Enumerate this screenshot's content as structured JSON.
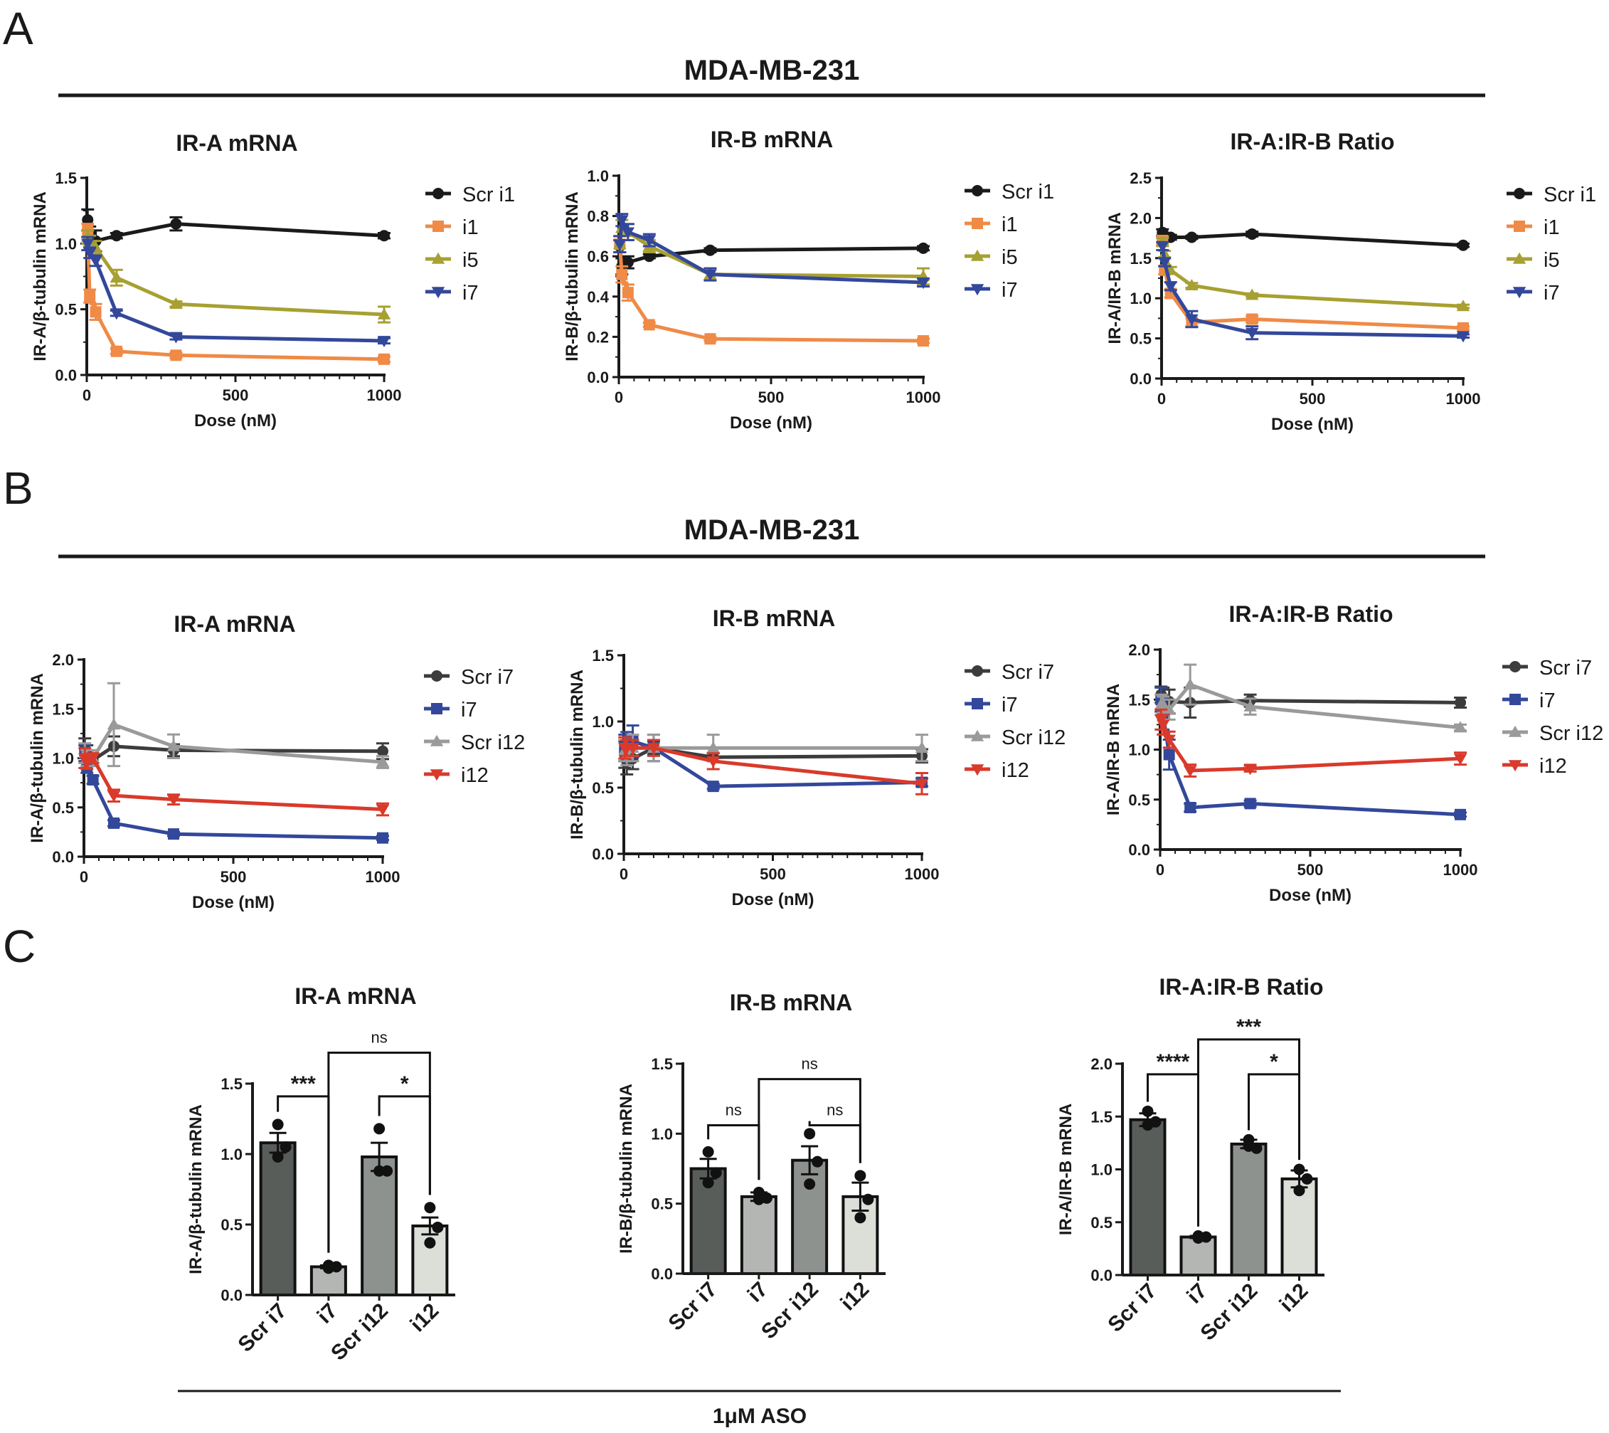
{
  "figure": {
    "panels": [
      "A",
      "B",
      "C"
    ],
    "cell_line": "MDA-MB-231",
    "aso_label": "1μM ASO"
  },
  "colors": {
    "black": "#1a1a1a",
    "orange": "#ef8a47",
    "olive": "#a7a032",
    "blue": "#33489a",
    "gray": "#9a9a9a",
    "darkgray": "#3c3c3c",
    "red": "#d93a2b",
    "bar_dark": "#585d5a",
    "bar_mid": "#b4b6b4",
    "bar_midgray": "#8e928f",
    "bar_light": "#dcdfd8"
  },
  "chart_data": [
    {
      "id": "A1",
      "type": "line",
      "title": "IR-A mRNA",
      "xlabel": "Dose (nM)",
      "ylabel": "IR-A/β-tubulin mRNA",
      "xlim": [
        0,
        1000
      ],
      "ylim": [
        0,
        1.5
      ],
      "xticks": [
        0,
        500,
        1000
      ],
      "yticks": [
        0.0,
        0.5,
        1.0,
        1.5
      ],
      "x": [
        3,
        10,
        30,
        100,
        300,
        1000
      ],
      "series": [
        {
          "name": "Scr i1",
          "color": "black",
          "marker": "circle",
          "values": [
            1.18,
            1.08,
            1.02,
            1.06,
            1.15,
            1.06
          ],
          "errors": [
            0.08,
            0.05,
            0.08,
            0.02,
            0.05,
            0.02
          ]
        },
        {
          "name": "i1",
          "color": "orange",
          "marker": "square",
          "values": [
            1.1,
            0.6,
            0.48,
            0.18,
            0.15,
            0.12
          ],
          "errors": [
            0.05,
            0.05,
            0.06,
            0.02,
            0.02,
            0.02
          ]
        },
        {
          "name": "i5",
          "color": "olive",
          "marker": "triangle-up",
          "values": [
            1.05,
            1.02,
            0.97,
            0.74,
            0.54,
            0.46
          ],
          "errors": [
            0.05,
            0.04,
            0.05,
            0.06,
            0.02,
            0.06
          ]
        },
        {
          "name": "i7",
          "color": "blue",
          "marker": "triangle-down",
          "values": [
            1.0,
            0.93,
            0.87,
            0.47,
            0.29,
            0.26
          ],
          "errors": [
            0.05,
            0.04,
            0.04,
            0.02,
            0.02,
            0.02
          ]
        }
      ]
    },
    {
      "id": "A2",
      "type": "line",
      "title": "IR-B mRNA",
      "xlabel": "Dose (nM)",
      "ylabel": "IR-B/β-tubulin mRNA",
      "xlim": [
        0,
        1000
      ],
      "ylim": [
        0,
        1.0
      ],
      "xticks": [
        0,
        500,
        1000
      ],
      "yticks": [
        0.0,
        0.2,
        0.4,
        0.6,
        0.8,
        1.0
      ],
      "x": [
        3,
        10,
        30,
        100,
        300,
        1000
      ],
      "series": [
        {
          "name": "Scr i1",
          "color": "black",
          "marker": "circle",
          "values": [
            0.65,
            0.55,
            0.57,
            0.6,
            0.63,
            0.64
          ],
          "errors": [
            0.03,
            0.04,
            0.03,
            0.01,
            0.01,
            0.01
          ]
        },
        {
          "name": "i1",
          "color": "orange",
          "marker": "square",
          "values": [
            0.66,
            0.51,
            0.42,
            0.26,
            0.19,
            0.18
          ],
          "errors": [
            0.04,
            0.04,
            0.04,
            0.01,
            0.01,
            0.01
          ]
        },
        {
          "name": "i5",
          "color": "olive",
          "marker": "triangle-up",
          "values": [
            0.66,
            0.74,
            0.72,
            0.65,
            0.51,
            0.5
          ],
          "errors": [
            0.04,
            0.04,
            0.04,
            0.03,
            0.03,
            0.04
          ]
        },
        {
          "name": "i7",
          "color": "blue",
          "marker": "triangle-down",
          "values": [
            0.66,
            0.78,
            0.72,
            0.68,
            0.51,
            0.47
          ],
          "errors": [
            0.04,
            0.03,
            0.04,
            0.03,
            0.03,
            0.02
          ]
        }
      ]
    },
    {
      "id": "A3",
      "type": "line",
      "title": "IR-A:IR-B Ratio",
      "xlabel": "Dose (nM)",
      "ylabel": "IR-A/IR-B mRNA",
      "xlim": [
        0,
        1000
      ],
      "ylim": [
        0,
        2.5
      ],
      "xticks": [
        0,
        500,
        1000
      ],
      "yticks": [
        0.0,
        0.5,
        1.0,
        1.5,
        2.0,
        2.5
      ],
      "x": [
        3,
        10,
        30,
        100,
        300,
        1000
      ],
      "series": [
        {
          "name": "Scr i1",
          "color": "black",
          "marker": "circle",
          "values": [
            1.82,
            1.78,
            1.76,
            1.76,
            1.8,
            1.66
          ],
          "errors": [
            0.04,
            0.03,
            0.03,
            0.02,
            0.03,
            0.02
          ]
        },
        {
          "name": "i1",
          "color": "orange",
          "marker": "square",
          "values": [
            1.72,
            1.35,
            1.06,
            0.7,
            0.74,
            0.63
          ],
          "errors": [
            0.05,
            0.05,
            0.05,
            0.05,
            0.04,
            0.02
          ]
        },
        {
          "name": "i5",
          "color": "olive",
          "marker": "triangle-up",
          "values": [
            1.7,
            1.55,
            1.35,
            1.16,
            1.04,
            0.9
          ],
          "errors": [
            0.05,
            0.04,
            0.04,
            0.03,
            0.02,
            0.02
          ]
        },
        {
          "name": "i7",
          "color": "blue",
          "marker": "triangle-down",
          "values": [
            1.65,
            1.45,
            1.15,
            0.74,
            0.57,
            0.53
          ],
          "errors": [
            0.05,
            0.05,
            0.05,
            0.1,
            0.08,
            0.02
          ]
        }
      ]
    },
    {
      "id": "B1",
      "type": "line",
      "title": "IR-A mRNA",
      "xlabel": "Dose (nM)",
      "ylabel": "IR-A/β-tubulin mRNA",
      "xlim": [
        0,
        1000
      ],
      "ylim": [
        0,
        2.0
      ],
      "xticks": [
        0,
        500,
        1000
      ],
      "yticks": [
        0.0,
        0.5,
        1.0,
        1.5,
        2.0
      ],
      "x": [
        3,
        10,
        30,
        100,
        300,
        1000
      ],
      "series": [
        {
          "name": "Scr i7",
          "color": "darkgray",
          "marker": "circle",
          "values": [
            1.1,
            1.05,
            0.98,
            1.12,
            1.08,
            1.07
          ],
          "errors": [
            0.1,
            0.08,
            0.06,
            0.1,
            0.06,
            0.08
          ]
        },
        {
          "name": "i7",
          "color": "blue",
          "marker": "square",
          "values": [
            1.05,
            0.9,
            0.78,
            0.34,
            0.23,
            0.19
          ],
          "errors": [
            0.08,
            0.05,
            0.04,
            0.03,
            0.02,
            0.02
          ]
        },
        {
          "name": "Scr i12",
          "color": "gray",
          "marker": "triangle-up",
          "values": [
            1.05,
            1.0,
            1.0,
            1.34,
            1.12,
            0.96
          ],
          "errors": [
            0.1,
            0.08,
            0.08,
            0.42,
            0.12,
            0.06
          ]
        },
        {
          "name": "i12",
          "color": "red",
          "marker": "triangle-down",
          "values": [
            1.0,
            0.95,
            1.0,
            0.62,
            0.58,
            0.48
          ],
          "errors": [
            0.1,
            0.06,
            0.05,
            0.06,
            0.05,
            0.06
          ]
        }
      ]
    },
    {
      "id": "B2",
      "type": "line",
      "title": "IR-B mRNA",
      "xlabel": "Dose (nM)",
      "ylabel": "IR-B/β-tubulin mRNA",
      "xlim": [
        0,
        1000
      ],
      "ylim": [
        0,
        1.5
      ],
      "xticks": [
        0,
        500,
        1000
      ],
      "yticks": [
        0.0,
        0.5,
        1.0,
        1.5
      ],
      "x": [
        3,
        10,
        30,
        100,
        300,
        1000
      ],
      "series": [
        {
          "name": "Scr i7",
          "color": "darkgray",
          "marker": "circle",
          "values": [
            0.75,
            0.7,
            0.72,
            0.8,
            0.73,
            0.74
          ],
          "errors": [
            0.1,
            0.1,
            0.08,
            0.05,
            0.03,
            0.05
          ]
        },
        {
          "name": "i7",
          "color": "blue",
          "marker": "square",
          "values": [
            0.8,
            0.82,
            0.85,
            0.8,
            0.51,
            0.54
          ],
          "errors": [
            0.1,
            0.1,
            0.12,
            0.1,
            0.02,
            0.03
          ]
        },
        {
          "name": "Scr i12",
          "color": "gray",
          "marker": "triangle-up",
          "values": [
            0.78,
            0.75,
            0.8,
            0.8,
            0.8,
            0.8
          ],
          "errors": [
            0.08,
            0.08,
            0.1,
            0.1,
            0.1,
            0.1
          ]
        },
        {
          "name": "i12",
          "color": "red",
          "marker": "triangle-down",
          "values": [
            0.8,
            0.8,
            0.8,
            0.8,
            0.7,
            0.53
          ],
          "errors": [
            0.08,
            0.06,
            0.06,
            0.06,
            0.06,
            0.08
          ]
        }
      ]
    },
    {
      "id": "B3",
      "type": "line",
      "title": "IR-A:IR-B Ratio",
      "xlabel": "Dose (nM)",
      "ylabel": "IR-A/IR-B mRNA",
      "xlim": [
        0,
        1000
      ],
      "ylim": [
        0,
        2.0
      ],
      "xticks": [
        0,
        500,
        1000
      ],
      "yticks": [
        0.0,
        0.5,
        1.0,
        1.5,
        2.0
      ],
      "x": [
        3,
        10,
        30,
        100,
        300,
        1000
      ],
      "series": [
        {
          "name": "Scr i7",
          "color": "darkgray",
          "marker": "circle",
          "values": [
            1.55,
            1.52,
            1.48,
            1.47,
            1.49,
            1.47
          ],
          "errors": [
            0.08,
            0.1,
            0.12,
            0.15,
            0.06,
            0.05
          ]
        },
        {
          "name": "i7",
          "color": "blue",
          "marker": "square",
          "values": [
            1.5,
            1.35,
            0.95,
            0.42,
            0.46,
            0.35
          ],
          "errors": [
            0.12,
            0.15,
            0.15,
            0.04,
            0.03,
            0.02
          ]
        },
        {
          "name": "Scr i12",
          "color": "gray",
          "marker": "triangle-up",
          "values": [
            1.45,
            1.45,
            1.4,
            1.65,
            1.43,
            1.22
          ],
          "errors": [
            0.1,
            0.08,
            0.1,
            0.2,
            0.08,
            0.03
          ]
        },
        {
          "name": "i12",
          "color": "red",
          "marker": "triangle-down",
          "values": [
            1.3,
            1.25,
            1.1,
            0.79,
            0.81,
            0.91
          ],
          "errors": [
            0.1,
            0.1,
            0.08,
            0.06,
            0.03,
            0.06
          ]
        }
      ]
    },
    {
      "id": "C1",
      "type": "bar",
      "title": "IR-A mRNA",
      "ylabel": "IR-A/β-tubulin mRNA",
      "ylim": [
        0,
        1.5
      ],
      "yticks": [
        0.0,
        0.5,
        1.0,
        1.5
      ],
      "categories": [
        "Scr i7",
        "i7",
        "Scr i12",
        "i12"
      ],
      "bar_colors": [
        "bar_dark",
        "bar_mid",
        "bar_midgray",
        "bar_light"
      ],
      "values": [
        1.08,
        0.2,
        0.98,
        0.49
      ],
      "errors": [
        0.07,
        0.01,
        0.1,
        0.06
      ],
      "points": [
        [
          1.21,
          1.05,
          0.98
        ],
        [
          0.19,
          0.2,
          0.21
        ],
        [
          1.18,
          0.88,
          0.88
        ],
        [
          0.62,
          0.48,
          0.37
        ]
      ],
      "comparisons": [
        {
          "a": 0,
          "b": 1,
          "label": "***",
          "y": 1.41
        },
        {
          "a": 2,
          "b": 3,
          "label": "*",
          "y": 1.41
        },
        {
          "a": 1,
          "b": 3,
          "label": "ns",
          "y": 1.72
        }
      ]
    },
    {
      "id": "C2",
      "type": "bar",
      "title": "IR-B mRNA",
      "ylabel": "IR-B/β-tubulin mRNA",
      "ylim": [
        0,
        1.5
      ],
      "yticks": [
        0.0,
        0.5,
        1.0,
        1.5
      ],
      "categories": [
        "Scr i7",
        "i7",
        "Scr i12",
        "i12"
      ],
      "bar_colors": [
        "bar_dark",
        "bar_mid",
        "bar_midgray",
        "bar_light"
      ],
      "values": [
        0.75,
        0.55,
        0.81,
        0.55
      ],
      "errors": [
        0.07,
        0.03,
        0.1,
        0.1
      ],
      "points": [
        [
          0.87,
          0.72,
          0.65
        ],
        [
          0.58,
          0.54,
          0.53
        ],
        [
          1.0,
          0.8,
          0.64
        ],
        [
          0.7,
          0.53,
          0.4
        ]
      ],
      "comparisons": [
        {
          "a": 0,
          "b": 1,
          "label": "ns",
          "y": 1.06
        },
        {
          "a": 2,
          "b": 3,
          "label": "ns",
          "y": 1.06
        },
        {
          "a": 1,
          "b": 3,
          "label": "ns",
          "y": 1.39
        }
      ]
    },
    {
      "id": "C3",
      "type": "bar",
      "title": "IR-A:IR-B Ratio",
      "ylabel": "IR-A/IR-B mRNA",
      "ylim": [
        0,
        2.0
      ],
      "yticks": [
        0.0,
        0.5,
        1.0,
        1.5,
        2.0
      ],
      "categories": [
        "Scr i7",
        "i7",
        "Scr i12",
        "i12"
      ],
      "bar_colors": [
        "bar_dark",
        "bar_mid",
        "bar_midgray",
        "bar_light"
      ],
      "values": [
        1.47,
        0.36,
        1.24,
        0.91
      ],
      "errors": [
        0.06,
        0.01,
        0.04,
        0.08
      ],
      "points": [
        [
          1.55,
          1.45,
          1.42
        ],
        [
          0.37,
          0.36,
          0.35
        ],
        [
          1.28,
          1.2,
          1.22
        ],
        [
          1.0,
          0.91,
          0.8
        ]
      ],
      "comparisons": [
        {
          "a": 0,
          "b": 1,
          "label": "****",
          "y": 1.9
        },
        {
          "a": 2,
          "b": 3,
          "label": "*",
          "y": 1.9
        },
        {
          "a": 1,
          "b": 3,
          "label": "***",
          "y": 2.23
        }
      ]
    }
  ]
}
